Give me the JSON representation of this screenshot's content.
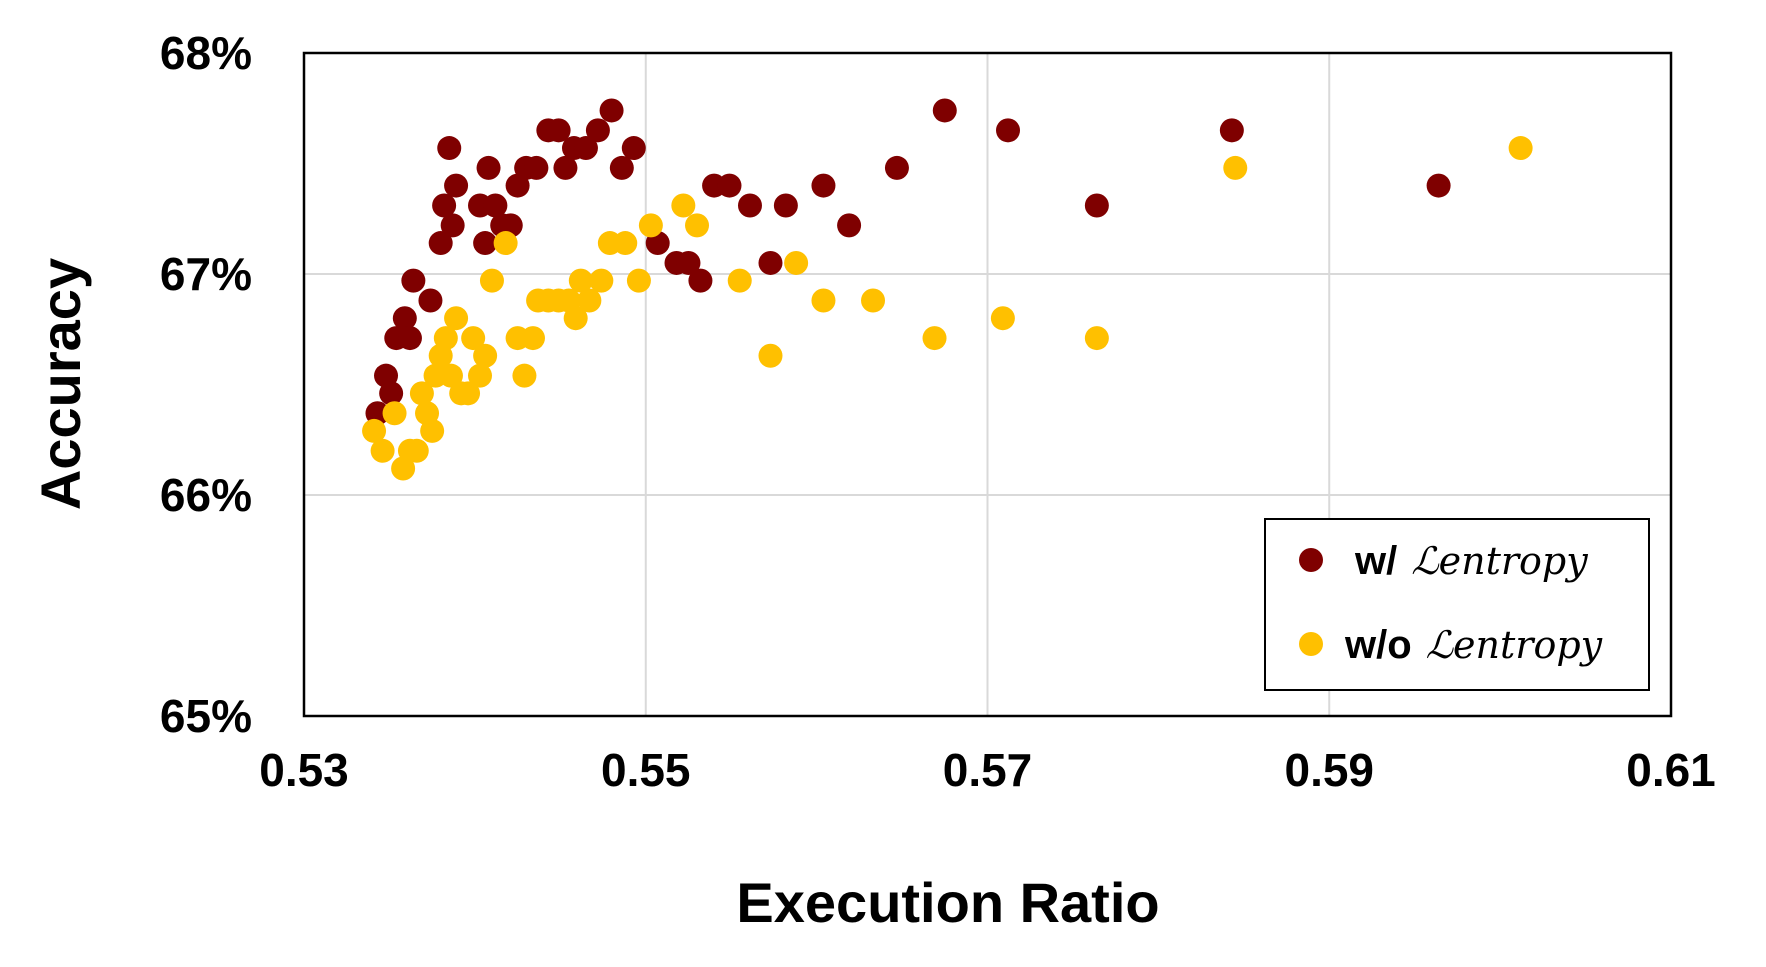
{
  "chart_data": {
    "type": "scatter",
    "xlabel": "Execution Ratio",
    "ylabel": "Accuracy",
    "xlim": [
      0.53,
      0.61
    ],
    "ylim": [
      65,
      68
    ],
    "x_ticks": [
      {
        "value": 0.53,
        "label": "0.53"
      },
      {
        "value": 0.55,
        "label": "0.55"
      },
      {
        "value": 0.57,
        "label": "0.57"
      },
      {
        "value": 0.59,
        "label": "0.59"
      },
      {
        "value": 0.61,
        "label": "0.61"
      }
    ],
    "y_ticks": [
      {
        "value": 65,
        "label": "65%"
      },
      {
        "value": 66,
        "label": "66%"
      },
      {
        "value": 67,
        "label": "67%"
      },
      {
        "value": 68,
        "label": "68%"
      }
    ],
    "grid": true,
    "legend_position": "bottom-right",
    "series": [
      {
        "name": "w/",
        "name_math": "ℒentropy",
        "color": "#7f0000",
        "points": [
          [
            0.5343,
            66.37
          ],
          [
            0.5348,
            66.54
          ],
          [
            0.5351,
            66.46
          ],
          [
            0.5354,
            66.71
          ],
          [
            0.5359,
            66.8
          ],
          [
            0.5362,
            66.71
          ],
          [
            0.5364,
            66.97
          ],
          [
            0.5374,
            66.88
          ],
          [
            0.538,
            67.14
          ],
          [
            0.5382,
            67.31
          ],
          [
            0.5385,
            67.57
          ],
          [
            0.5387,
            67.22
          ],
          [
            0.5389,
            67.4
          ],
          [
            0.5403,
            67.31
          ],
          [
            0.5406,
            67.14
          ],
          [
            0.5408,
            67.48
          ],
          [
            0.5412,
            67.31
          ],
          [
            0.5416,
            67.22
          ],
          [
            0.5421,
            67.22
          ],
          [
            0.5425,
            67.4
          ],
          [
            0.543,
            67.48
          ],
          [
            0.5436,
            67.48
          ],
          [
            0.5443,
            67.65
          ],
          [
            0.5449,
            67.65
          ],
          [
            0.5453,
            67.48
          ],
          [
            0.5458,
            67.57
          ],
          [
            0.5465,
            67.57
          ],
          [
            0.5472,
            67.65
          ],
          [
            0.548,
            67.74
          ],
          [
            0.5486,
            67.48
          ],
          [
            0.5493,
            67.57
          ],
          [
            0.5507,
            67.14
          ],
          [
            0.5518,
            67.05
          ],
          [
            0.5525,
            67.05
          ],
          [
            0.5532,
            66.97
          ],
          [
            0.554,
            67.4
          ],
          [
            0.5549,
            67.4
          ],
          [
            0.5561,
            67.31
          ],
          [
            0.5573,
            67.05
          ],
          [
            0.5582,
            67.31
          ],
          [
            0.5604,
            67.4
          ],
          [
            0.5619,
            67.22
          ],
          [
            0.5647,
            67.48
          ],
          [
            0.5675,
            67.74
          ],
          [
            0.5712,
            67.65
          ],
          [
            0.5764,
            67.31
          ],
          [
            0.5843,
            67.65
          ],
          [
            0.5964,
            67.4
          ]
        ]
      },
      {
        "name": "w/o",
        "name_math": "ℒentropy",
        "color": "#ffc000",
        "points": [
          [
            0.5341,
            66.29
          ],
          [
            0.5346,
            66.2
          ],
          [
            0.5353,
            66.37
          ],
          [
            0.5358,
            66.12
          ],
          [
            0.5362,
            66.2
          ],
          [
            0.5366,
            66.2
          ],
          [
            0.5369,
            66.46
          ],
          [
            0.5372,
            66.37
          ],
          [
            0.5375,
            66.29
          ],
          [
            0.5377,
            66.54
          ],
          [
            0.538,
            66.63
          ],
          [
            0.5383,
            66.71
          ],
          [
            0.5386,
            66.54
          ],
          [
            0.5389,
            66.8
          ],
          [
            0.5392,
            66.46
          ],
          [
            0.5396,
            66.46
          ],
          [
            0.5399,
            66.71
          ],
          [
            0.5403,
            66.54
          ],
          [
            0.5406,
            66.63
          ],
          [
            0.541,
            66.97
          ],
          [
            0.5418,
            67.14
          ],
          [
            0.5425,
            66.71
          ],
          [
            0.5429,
            66.54
          ],
          [
            0.5434,
            66.71
          ],
          [
            0.5437,
            66.88
          ],
          [
            0.5443,
            66.88
          ],
          [
            0.5449,
            66.88
          ],
          [
            0.5455,
            66.88
          ],
          [
            0.5459,
            66.8
          ],
          [
            0.5462,
            66.97
          ],
          [
            0.5467,
            66.88
          ],
          [
            0.5474,
            66.97
          ],
          [
            0.5479,
            67.14
          ],
          [
            0.5488,
            67.14
          ],
          [
            0.5496,
            66.97
          ],
          [
            0.5503,
            67.22
          ],
          [
            0.5522,
            67.31
          ],
          [
            0.553,
            67.22
          ],
          [
            0.5555,
            66.97
          ],
          [
            0.5573,
            66.63
          ],
          [
            0.5588,
            67.05
          ],
          [
            0.5604,
            66.88
          ],
          [
            0.5633,
            66.88
          ],
          [
            0.5669,
            66.71
          ],
          [
            0.5709,
            66.8
          ],
          [
            0.5764,
            66.71
          ],
          [
            0.5845,
            67.48
          ],
          [
            0.6012,
            67.57
          ]
        ]
      }
    ]
  }
}
